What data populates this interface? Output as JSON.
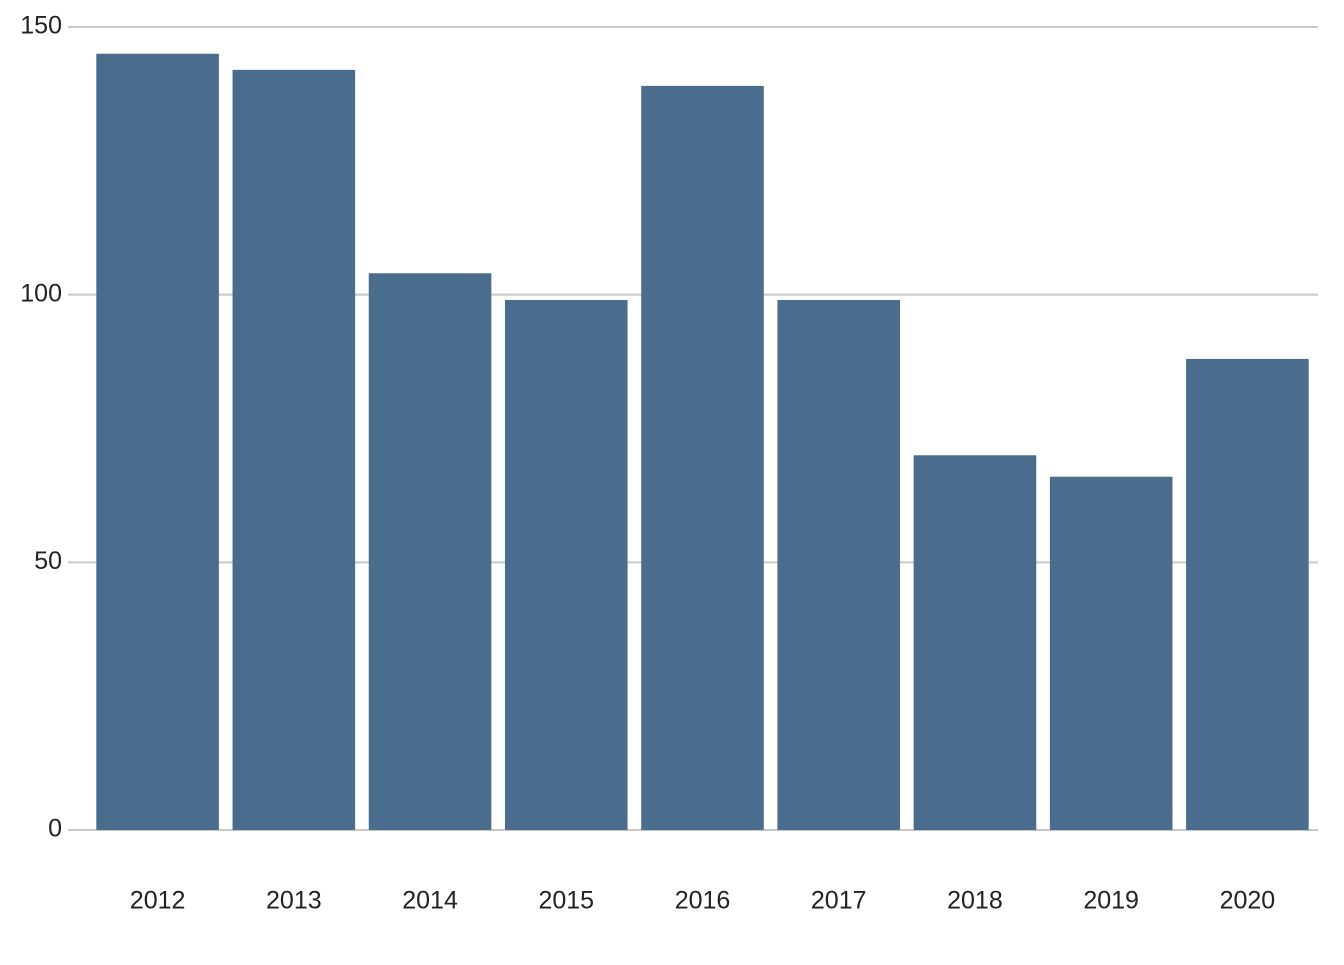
{
  "chart_data": {
    "type": "bar",
    "categories": [
      "2012",
      "2013",
      "2014",
      "2015",
      "2016",
      "2017",
      "2018",
      "2019",
      "2020"
    ],
    "values": [
      145,
      142,
      104,
      99,
      139,
      99,
      70,
      66,
      88
    ],
    "color": "#4a6d8e",
    "ylim": [
      0,
      150
    ],
    "yticks": [
      0,
      50,
      100,
      150
    ],
    "grid": true
  }
}
